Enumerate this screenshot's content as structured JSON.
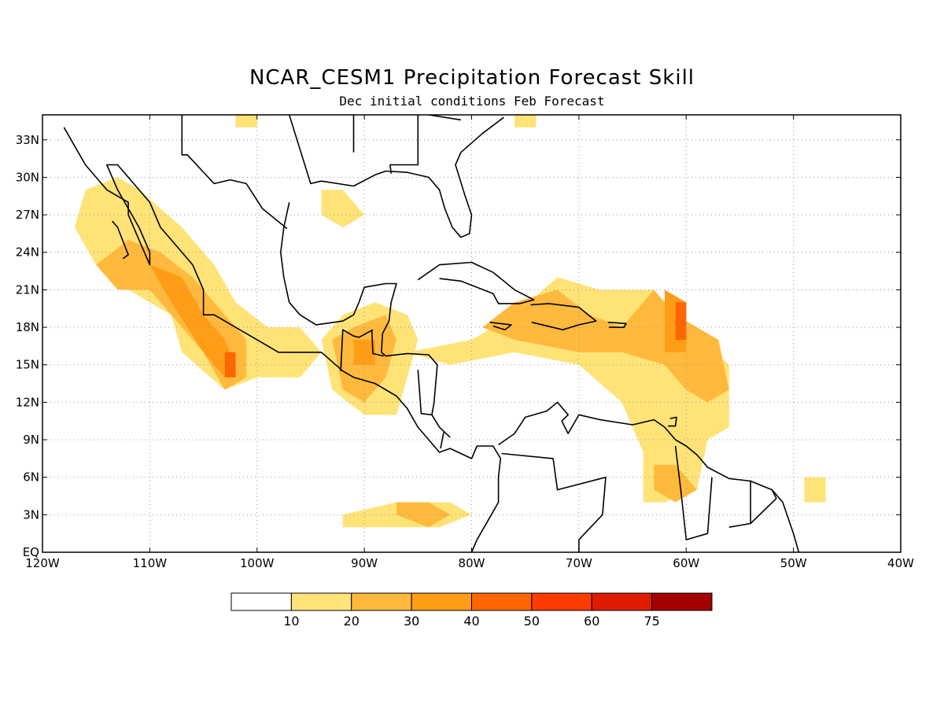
{
  "title": "NCAR_CESM1 Precipitation Forecast Skill",
  "subtitle": "Dec initial conditions  Feb Forecast",
  "map": {
    "lon_range": [
      -120,
      -40
    ],
    "lat_range": [
      0,
      35
    ],
    "lon_ticks": [
      {
        "value": -120,
        "label": "120W"
      },
      {
        "value": -110,
        "label": "110W"
      },
      {
        "value": -100,
        "label": "100W"
      },
      {
        "value": -90,
        "label": "90W"
      },
      {
        "value": -80,
        "label": "80W"
      },
      {
        "value": -70,
        "label": "70W"
      },
      {
        "value": -60,
        "label": "60W"
      },
      {
        "value": -50,
        "label": "50W"
      },
      {
        "value": -40,
        "label": "40W"
      }
    ],
    "lat_ticks": [
      {
        "value": 0,
        "label": "EQ"
      },
      {
        "value": 3,
        "label": "3N"
      },
      {
        "value": 6,
        "label": "6N"
      },
      {
        "value": 9,
        "label": "9N"
      },
      {
        "value": 12,
        "label": "12N"
      },
      {
        "value": 15,
        "label": "15N"
      },
      {
        "value": 18,
        "label": "18N"
      },
      {
        "value": 21,
        "label": "21N"
      },
      {
        "value": 24,
        "label": "24N"
      },
      {
        "value": 27,
        "label": "27N"
      },
      {
        "value": 30,
        "label": "30N"
      },
      {
        "value": 33,
        "label": "33N"
      }
    ],
    "grid": true
  },
  "colorbar": {
    "colors": [
      "#ffffff",
      "#ffe377",
      "#ffb93d",
      "#ff9d16",
      "#ff6600",
      "#ff3c00",
      "#e01c00",
      "#a50000"
    ],
    "labels": [
      "10",
      "20",
      "30",
      "40",
      "50",
      "60",
      "75"
    ]
  },
  "skill_regions": [
    {
      "level": 1,
      "points": [
        [
          -117,
          26
        ],
        [
          -116,
          29
        ],
        [
          -113,
          30
        ],
        [
          -111,
          29
        ],
        [
          -107,
          26
        ],
        [
          -104,
          23
        ],
        [
          -102,
          20
        ],
        [
          -99,
          18
        ],
        [
          -96,
          18
        ],
        [
          -94,
          16
        ],
        [
          -96,
          14
        ],
        [
          -100,
          14
        ],
        [
          -103,
          13
        ],
        [
          -107,
          16
        ],
        [
          -108,
          19
        ],
        [
          -112,
          21
        ],
        [
          -115,
          23
        ]
      ]
    },
    {
      "level": 2,
      "points": [
        [
          -115,
          23
        ],
        [
          -112,
          25
        ],
        [
          -109,
          24
        ],
        [
          -106,
          22
        ],
        [
          -103,
          19
        ],
        [
          -101,
          17
        ],
        [
          -101,
          14
        ],
        [
          -103,
          13
        ],
        [
          -105,
          16
        ],
        [
          -107,
          18
        ],
        [
          -110,
          21
        ],
        [
          -113,
          21
        ]
      ]
    },
    {
      "level": 3,
      "points": [
        [
          -110,
          23
        ],
        [
          -107,
          22
        ],
        [
          -105,
          19
        ],
        [
          -103,
          17
        ],
        [
          -102,
          15
        ],
        [
          -103,
          14
        ],
        [
          -105,
          16
        ],
        [
          -108,
          20
        ]
      ]
    },
    {
      "level": 4,
      "points": [
        [
          -103,
          16
        ],
        [
          -102,
          16
        ],
        [
          -102,
          14
        ],
        [
          -103,
          14
        ]
      ]
    },
    {
      "level": 1,
      "points": [
        [
          -94,
          17
        ],
        [
          -92,
          19
        ],
        [
          -89,
          20
        ],
        [
          -86,
          19
        ],
        [
          -85,
          17
        ],
        [
          -86,
          14
        ],
        [
          -87,
          11
        ],
        [
          -90,
          11
        ],
        [
          -93,
          13
        ]
      ]
    },
    {
      "level": 2,
      "points": [
        [
          -93,
          17
        ],
        [
          -91,
          18
        ],
        [
          -88,
          19
        ],
        [
          -87,
          17
        ],
        [
          -88,
          14
        ],
        [
          -90,
          12
        ],
        [
          -92,
          13
        ]
      ]
    },
    {
      "level": 3,
      "points": [
        [
          -91,
          17
        ],
        [
          -89,
          17
        ],
        [
          -89,
          15
        ],
        [
          -91,
          15
        ]
      ]
    },
    {
      "level": 1,
      "points": [
        [
          -86,
          16
        ],
        [
          -80,
          17
        ],
        [
          -76,
          19
        ],
        [
          -72,
          22
        ],
        [
          -68,
          21
        ],
        [
          -63,
          21
        ],
        [
          -60,
          18
        ],
        [
          -56,
          15
        ],
        [
          -56,
          10
        ],
        [
          -58,
          9
        ],
        [
          -59,
          5
        ],
        [
          -62,
          4
        ],
        [
          -64,
          4
        ],
        [
          -64,
          8
        ],
        [
          -66,
          12
        ],
        [
          -70,
          15
        ],
        [
          -76,
          16
        ],
        [
          -82,
          15
        ]
      ]
    },
    {
      "level": 2,
      "points": [
        [
          -79,
          18
        ],
        [
          -76,
          20
        ],
        [
          -72,
          21
        ],
        [
          -69,
          19
        ],
        [
          -66,
          18
        ],
        [
          -63,
          21
        ],
        [
          -61,
          19
        ],
        [
          -57,
          17
        ],
        [
          -56,
          13
        ],
        [
          -58,
          12
        ],
        [
          -60,
          13
        ],
        [
          -62,
          15
        ],
        [
          -66,
          16
        ],
        [
          -70,
          16
        ],
        [
          -76,
          17
        ]
      ]
    },
    {
      "level": 3,
      "points": [
        [
          -62,
          21
        ],
        [
          -60,
          20
        ],
        [
          -60,
          16
        ],
        [
          -62,
          16
        ]
      ]
    },
    {
      "level": 4,
      "points": [
        [
          -61,
          20
        ],
        [
          -60,
          20
        ],
        [
          -60,
          17
        ],
        [
          -61,
          17
        ]
      ]
    },
    {
      "level": 2,
      "points": [
        [
          -63,
          7
        ],
        [
          -61,
          7
        ],
        [
          -59,
          5
        ],
        [
          -61,
          4
        ],
        [
          -63,
          5
        ]
      ]
    },
    {
      "level": 1,
      "points": [
        [
          -87,
          4
        ],
        [
          -82,
          4
        ],
        [
          -80,
          3
        ],
        [
          -83,
          2
        ],
        [
          -87,
          2
        ],
        [
          -92,
          2
        ],
        [
          -92,
          3
        ]
      ]
    },
    {
      "level": 2,
      "points": [
        [
          -87,
          4
        ],
        [
          -84,
          4
        ],
        [
          -82,
          3
        ],
        [
          -84,
          2
        ],
        [
          -87,
          3
        ]
      ]
    },
    {
      "level": 1,
      "points": [
        [
          -94,
          29
        ],
        [
          -92,
          29
        ],
        [
          -90,
          27
        ],
        [
          -92,
          26
        ],
        [
          -94,
          27
        ]
      ]
    },
    {
      "level": 1,
      "points": [
        [
          -49,
          6
        ],
        [
          -47,
          6
        ],
        [
          -47,
          4
        ],
        [
          -49,
          4
        ]
      ]
    },
    {
      "level": 1,
      "points": [
        [
          -102,
          35
        ],
        [
          -100,
          35
        ],
        [
          -100,
          34
        ],
        [
          -102,
          34
        ]
      ]
    },
    {
      "level": 1,
      "points": [
        [
          -76,
          35
        ],
        [
          -74,
          35
        ],
        [
          -74,
          34
        ],
        [
          -76,
          34
        ]
      ]
    }
  ],
  "coastlines": [
    [
      [
        -118,
        34
      ],
      [
        -117,
        32.5
      ],
      [
        -116,
        31
      ],
      [
        -114,
        29
      ],
      [
        -112,
        28
      ],
      [
        -112,
        27
      ],
      [
        -111,
        25
      ],
      [
        -110,
        23
      ],
      [
        -110,
        24
      ],
      [
        -111,
        26
      ],
      [
        -113,
        29
      ],
      [
        -114,
        31
      ],
      [
        -113,
        31
      ],
      [
        -112,
        30
      ],
      [
        -110,
        28
      ],
      [
        -109,
        26
      ],
      [
        -108,
        25
      ],
      [
        -106,
        23
      ],
      [
        -105,
        21
      ],
      [
        -105,
        19
      ],
      [
        -104,
        19
      ],
      [
        -102,
        18
      ],
      [
        -100,
        17
      ],
      [
        -98,
        16
      ],
      [
        -95,
        16
      ],
      [
        -94,
        16
      ],
      [
        -92,
        14.5
      ],
      [
        -91,
        14
      ],
      [
        -89,
        13.5
      ],
      [
        -88,
        13
      ],
      [
        -87,
        12.5
      ],
      [
        -86,
        11.5
      ],
      [
        -85,
        10
      ],
      [
        -84,
        9
      ],
      [
        -83,
        8
      ],
      [
        -82,
        8.3
      ],
      [
        -80,
        7.5
      ],
      [
        -79.5,
        8.5
      ],
      [
        -78,
        8.5
      ],
      [
        -77.3,
        7.5
      ],
      [
        -77.5,
        6
      ],
      [
        -77.5,
        4
      ],
      [
        -78.5,
        2.5
      ],
      [
        -79.5,
        1
      ],
      [
        -80,
        0
      ]
    ],
    [
      [
        -97,
        35
      ],
      [
        -95,
        29.5
      ],
      [
        -94,
        29.7
      ],
      [
        -91,
        29.3
      ],
      [
        -89,
        30.2
      ],
      [
        -88,
        30.5
      ],
      [
        -86,
        30.4
      ],
      [
        -84,
        30
      ],
      [
        -83,
        29
      ],
      [
        -82.5,
        27.5
      ],
      [
        -81.8,
        26
      ],
      [
        -81,
        25.2
      ],
      [
        -80.2,
        25.5
      ],
      [
        -80,
        27
      ],
      [
        -80.6,
        28.5
      ],
      [
        -81.5,
        31
      ],
      [
        -81,
        32
      ],
      [
        -79,
        33.5
      ],
      [
        -77,
        34.8
      ]
    ],
    [
      [
        -97,
        28
      ],
      [
        -97.5,
        26
      ],
      [
        -97.8,
        24
      ],
      [
        -97.5,
        22
      ],
      [
        -97,
        20
      ],
      [
        -96,
        19
      ],
      [
        -94.5,
        18.2
      ],
      [
        -92,
        18.5
      ],
      [
        -91,
        19
      ],
      [
        -90.5,
        20
      ],
      [
        -90,
        21.2
      ],
      [
        -88,
        21.5
      ],
      [
        -87,
        21.5
      ],
      [
        -87.5,
        20
      ],
      [
        -87.7,
        18.5
      ],
      [
        -88.3,
        17.5
      ],
      [
        -88.4,
        16
      ],
      [
        -88,
        15.7
      ],
      [
        -86,
        15.9
      ],
      [
        -84,
        15.8
      ],
      [
        -83.2,
        15
      ],
      [
        -83.5,
        12
      ],
      [
        -83.7,
        11
      ],
      [
        -83,
        10
      ],
      [
        -82,
        9.2
      ]
    ],
    [
      [
        -77.5,
        8.6
      ],
      [
        -76,
        9.5
      ],
      [
        -75,
        10.8
      ],
      [
        -73,
        11.3
      ],
      [
        -72,
        12
      ],
      [
        -71,
        11
      ],
      [
        -71.6,
        10.5
      ],
      [
        -71,
        9.5
      ],
      [
        -70,
        11
      ],
      [
        -68,
        10.6
      ],
      [
        -65,
        10.2
      ],
      [
        -63,
        10.6
      ],
      [
        -62,
        10
      ],
      [
        -61,
        9
      ],
      [
        -60,
        8.5
      ],
      [
        -59,
        7.8
      ],
      [
        -58,
        6.8
      ],
      [
        -56,
        5.9
      ],
      [
        -54,
        5.7
      ],
      [
        -52,
        5
      ],
      [
        -51,
        4
      ],
      [
        -50,
        1.5
      ],
      [
        -49.5,
        0
      ]
    ],
    [
      [
        -85,
        21.8
      ],
      [
        -83,
        23
      ],
      [
        -80,
        23.2
      ],
      [
        -78,
        22.4
      ],
      [
        -76,
        21
      ],
      [
        -74.2,
        20.2
      ],
      [
        -75.5,
        19.9
      ],
      [
        -77.5,
        19.9
      ],
      [
        -78,
        20.7
      ],
      [
        -81,
        21.7
      ],
      [
        -83,
        21.9
      ]
    ],
    [
      [
        -74.5,
        19.8
      ],
      [
        -72.8,
        19.9
      ],
      [
        -70,
        19.6
      ],
      [
        -68.4,
        18.5
      ],
      [
        -70,
        18.2
      ],
      [
        -71.5,
        17.8
      ],
      [
        -74.4,
        18.4
      ]
    ],
    [
      [
        -78.3,
        18.4
      ],
      [
        -76.3,
        18.2
      ],
      [
        -76.9,
        17.8
      ],
      [
        -78,
        18.1
      ]
    ],
    [
      [
        -67.3,
        18.4
      ],
      [
        -65.6,
        18.3
      ],
      [
        -65.8,
        18
      ],
      [
        -67.2,
        18
      ]
    ],
    [
      [
        -91,
        35
      ],
      [
        -91,
        32
      ]
    ],
    [
      [
        -107,
        35
      ],
      [
        -107,
        31.8
      ],
      [
        -106.5,
        31.8
      ],
      [
        -104,
        29.5
      ],
      [
        -102.5,
        29.8
      ],
      [
        -101,
        29.5
      ],
      [
        -99.5,
        27.5
      ],
      [
        -97.2,
        25.9
      ]
    ],
    [
      [
        -89.3,
        17.8
      ],
      [
        -89.2,
        15.9
      ],
      [
        -88.2,
        15.7
      ]
    ],
    [
      [
        -92.2,
        14.5
      ],
      [
        -92,
        17.8
      ],
      [
        -91,
        17.3
      ],
      [
        -90.5,
        17.2
      ],
      [
        -89.2,
        17.8
      ]
    ],
    [
      [
        -85,
        14.6
      ],
      [
        -84.7,
        11.1
      ],
      [
        -83.7,
        11
      ]
    ],
    [
      [
        -82.9,
        8.3
      ],
      [
        -82.6,
        9.6
      ]
    ],
    [
      [
        -77.2,
        7.9
      ],
      [
        -72.4,
        7.5
      ],
      [
        -72,
        5
      ],
      [
        -67.5,
        6
      ],
      [
        -67.8,
        3
      ],
      [
        -70,
        1
      ],
      [
        -70,
        0
      ]
    ],
    [
      [
        -61,
        8.5
      ],
      [
        -60.5,
        5
      ],
      [
        -60,
        1
      ],
      [
        -58,
        1.5
      ],
      [
        -57.6,
        6
      ]
    ],
    [
      [
        -54,
        5.7
      ],
      [
        -54,
        2.3
      ],
      [
        -56,
        2
      ]
    ],
    [
      [
        -52,
        5
      ],
      [
        -51.6,
        4.3
      ],
      [
        -54,
        2.3
      ]
    ],
    [
      [
        -85,
        35
      ],
      [
        -85,
        31
      ],
      [
        -87.6,
        31
      ],
      [
        -87.5,
        30.3
      ]
    ],
    [
      [
        -81,
        34.6
      ],
      [
        -84,
        35
      ]
    ],
    [
      [
        -61.5,
        10.7
      ],
      [
        -60.9,
        10.8
      ],
      [
        -61,
        10.1
      ],
      [
        -61.7,
        10.1
      ]
    ],
    [
      [
        -112.5,
        23.5
      ],
      [
        -112,
        23.8
      ],
      [
        -113,
        26
      ],
      [
        -113.5,
        26.5
      ]
    ]
  ]
}
